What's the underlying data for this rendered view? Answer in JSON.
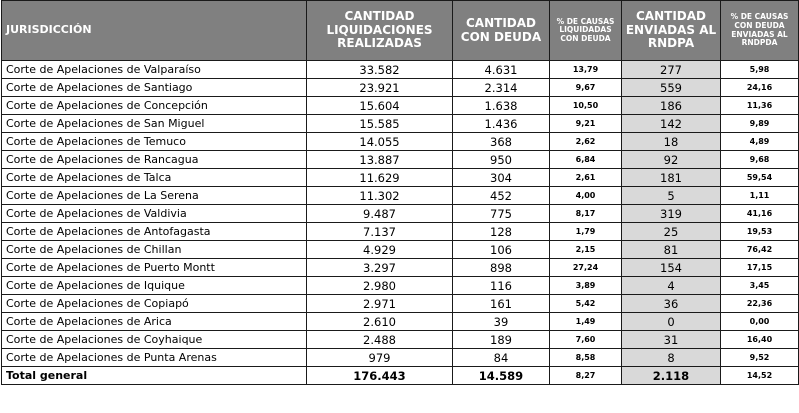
{
  "headers": {
    "jurisdiccion": "JURISDICCIÓN",
    "liquidaciones": "CANTIDAD LIQUIDACIONES REALIZADAS",
    "con_deuda": "CANTIDAD CON DEUDA",
    "pct_liquidadas": "% DE CAUSAS LIQUIDADAS CON DEUDA",
    "enviadas": "CANTIDAD ENVIADAS AL RNDPA",
    "pct_enviadas": "% DE CAUSAS CON DEUDA ENVIADAS AL RNDPDA"
  },
  "rows": [
    {
      "name": "Corte de Apelaciones de Valparaíso",
      "liquidaciones": "33.582",
      "con_deuda": "4.631",
      "pct_liquidadas": "13,79",
      "enviadas": "277",
      "pct_enviadas": "5,98"
    },
    {
      "name": "Corte de Apelaciones de Santiago",
      "liquidaciones": "23.921",
      "con_deuda": "2.314",
      "pct_liquidadas": "9,67",
      "enviadas": "559",
      "pct_enviadas": "24,16"
    },
    {
      "name": "Corte de Apelaciones de Concepción",
      "liquidaciones": "15.604",
      "con_deuda": "1.638",
      "pct_liquidadas": "10,50",
      "enviadas": "186",
      "pct_enviadas": "11,36"
    },
    {
      "name": "Corte de Apelaciones de San Miguel",
      "liquidaciones": "15.585",
      "con_deuda": "1.436",
      "pct_liquidadas": "9,21",
      "enviadas": "142",
      "pct_enviadas": "9,89"
    },
    {
      "name": "Corte de Apelaciones de Temuco",
      "liquidaciones": "14.055",
      "con_deuda": "368",
      "pct_liquidadas": "2,62",
      "enviadas": "18",
      "pct_enviadas": "4,89"
    },
    {
      "name": "Corte de Apelaciones de Rancagua",
      "liquidaciones": "13.887",
      "con_deuda": "950",
      "pct_liquidadas": "6,84",
      "enviadas": "92",
      "pct_enviadas": "9,68"
    },
    {
      "name": "Corte de Apelaciones de Talca",
      "liquidaciones": "11.629",
      "con_deuda": "304",
      "pct_liquidadas": "2,61",
      "enviadas": "181",
      "pct_enviadas": "59,54"
    },
    {
      "name": "Corte de Apelaciones de La Serena",
      "liquidaciones": "11.302",
      "con_deuda": "452",
      "pct_liquidadas": "4,00",
      "enviadas": "5",
      "pct_enviadas": "1,11"
    },
    {
      "name": "Corte de Apelaciones de Valdivia",
      "liquidaciones": "9.487",
      "con_deuda": "775",
      "pct_liquidadas": "8,17",
      "enviadas": "319",
      "pct_enviadas": "41,16"
    },
    {
      "name": "Corte de Apelaciones de Antofagasta",
      "liquidaciones": "7.137",
      "con_deuda": "128",
      "pct_liquidadas": "1,79",
      "enviadas": "25",
      "pct_enviadas": "19,53"
    },
    {
      "name": "Corte de Apelaciones de Chillan",
      "liquidaciones": "4.929",
      "con_deuda": "106",
      "pct_liquidadas": "2,15",
      "enviadas": "81",
      "pct_enviadas": "76,42"
    },
    {
      "name": "Corte de Apelaciones de Puerto Montt",
      "liquidaciones": "3.297",
      "con_deuda": "898",
      "pct_liquidadas": "27,24",
      "enviadas": "154",
      "pct_enviadas": "17,15"
    },
    {
      "name": "Corte de Apelaciones de Iquique",
      "liquidaciones": "2.980",
      "con_deuda": "116",
      "pct_liquidadas": "3,89",
      "enviadas": "4",
      "pct_enviadas": "3,45"
    },
    {
      "name": "Corte de Apelaciones de Copiapó",
      "liquidaciones": "2.971",
      "con_deuda": "161",
      "pct_liquidadas": "5,42",
      "enviadas": "36",
      "pct_enviadas": "22,36"
    },
    {
      "name": "Corte de Apelaciones de Arica",
      "liquidaciones": "2.610",
      "con_deuda": "39",
      "pct_liquidadas": "1,49",
      "enviadas": "0",
      "pct_enviadas": "0,00"
    },
    {
      "name": "Corte de Apelaciones de Coyhaique",
      "liquidaciones": "2.488",
      "con_deuda": "189",
      "pct_liquidadas": "7,60",
      "enviadas": "31",
      "pct_enviadas": "16,40"
    },
    {
      "name": "Corte de Apelaciones de Punta Arenas",
      "liquidaciones": "979",
      "con_deuda": "84",
      "pct_liquidadas": "8,58",
      "enviadas": "8",
      "pct_enviadas": "9,52"
    }
  ],
  "total": {
    "name": "Total general",
    "liquidaciones": "176.443",
    "con_deuda": "14.589",
    "pct_liquidadas": "8,27",
    "enviadas": "2.118",
    "pct_enviadas": "14,52"
  },
  "colors": {
    "header_bg": "#808080",
    "header_text": "#ffffff",
    "sent_column_bg": "#d9d9d9",
    "border": "#1a1a1a"
  }
}
